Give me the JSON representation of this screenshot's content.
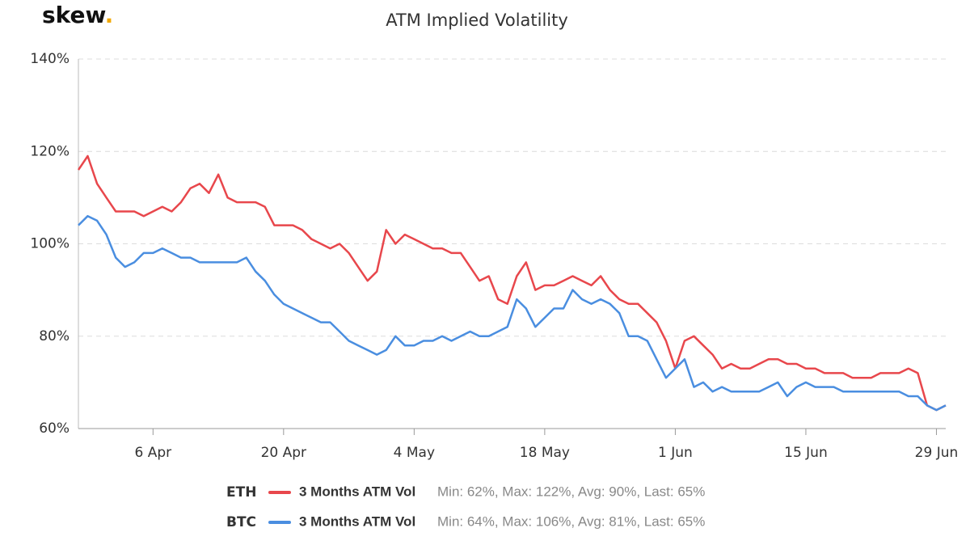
{
  "chart_data": {
    "type": "line",
    "logo": "skew",
    "logo_dot": ".",
    "title": "ATM Implied Volatility",
    "categories": [
      null,
      null,
      null,
      null,
      null,
      null,
      null,
      null,
      "6 Apr",
      null,
      null,
      null,
      null,
      null,
      null,
      null,
      null,
      null,
      null,
      null,
      null,
      null,
      "20 Apr",
      null,
      null,
      null,
      null,
      null,
      null,
      null,
      null,
      null,
      null,
      null,
      null,
      null,
      "4 May",
      null,
      null,
      null,
      null,
      null,
      null,
      null,
      null,
      null,
      null,
      null,
      null,
      null,
      "18 May",
      null,
      null,
      null,
      null,
      null,
      null,
      null,
      null,
      null,
      null,
      null,
      null,
      null,
      "1 Jun",
      null,
      null,
      null,
      null,
      null,
      null,
      null,
      null,
      null,
      null,
      null,
      null,
      null,
      "15 Jun",
      null,
      null,
      null,
      null,
      null,
      null,
      null,
      null,
      null,
      null,
      null,
      null,
      null,
      "29 Jun",
      null
    ],
    "ylim": [
      60,
      140
    ],
    "yticks": [
      {
        "value": 60,
        "label": "60%"
      },
      {
        "value": 80,
        "label": "80%"
      },
      {
        "value": 100,
        "label": "100%"
      },
      {
        "value": 120,
        "label": "120%"
      },
      {
        "value": 140,
        "label": "140%"
      }
    ],
    "grid": true,
    "series": [
      {
        "label": "ETH",
        "name": "3 Months ATM Vol",
        "stats": "Min: 62%, Max: 122%, Avg: 90%, Last: 65%",
        "color": "#e8474c",
        "values": [
          116,
          119,
          113,
          110,
          107,
          107,
          107,
          106,
          107,
          108,
          107,
          109,
          112,
          113,
          111,
          115,
          110,
          109,
          109,
          109,
          108,
          104,
          104,
          104,
          103,
          101,
          100,
          99,
          100,
          98,
          95,
          92,
          94,
          103,
          100,
          102,
          101,
          100,
          99,
          99,
          98,
          98,
          95,
          92,
          93,
          88,
          87,
          93,
          96,
          90,
          91,
          91,
          92,
          93,
          92,
          91,
          93,
          90,
          88,
          87,
          87,
          85,
          83,
          79,
          73,
          79,
          80,
          78,
          76,
          73,
          74,
          73,
          73,
          74,
          75,
          75,
          74,
          74,
          73,
          73,
          72,
          72,
          72,
          71,
          71,
          71,
          72,
          72,
          72,
          73,
          72,
          65,
          64,
          65
        ]
      },
      {
        "label": "BTC",
        "name": "3 Months ATM Vol",
        "stats": "Min: 64%, Max: 106%, Avg: 81%, Last: 65%",
        "color": "#4a8ee0",
        "values": [
          104,
          106,
          105,
          102,
          97,
          95,
          96,
          98,
          98,
          99,
          98,
          97,
          97,
          96,
          96,
          96,
          96,
          96,
          97,
          94,
          92,
          89,
          87,
          86,
          85,
          84,
          83,
          83,
          81,
          79,
          78,
          77,
          76,
          77,
          80,
          78,
          78,
          79,
          79,
          80,
          79,
          80,
          81,
          80,
          80,
          81,
          82,
          88,
          86,
          82,
          84,
          86,
          86,
          90,
          88,
          87,
          88,
          87,
          85,
          80,
          80,
          79,
          75,
          71,
          73,
          75,
          69,
          70,
          68,
          69,
          68,
          68,
          68,
          68,
          69,
          70,
          67,
          69,
          70,
          69,
          69,
          69,
          68,
          68,
          68,
          68,
          68,
          68,
          68,
          67,
          67,
          65,
          64,
          65
        ]
      }
    ]
  }
}
